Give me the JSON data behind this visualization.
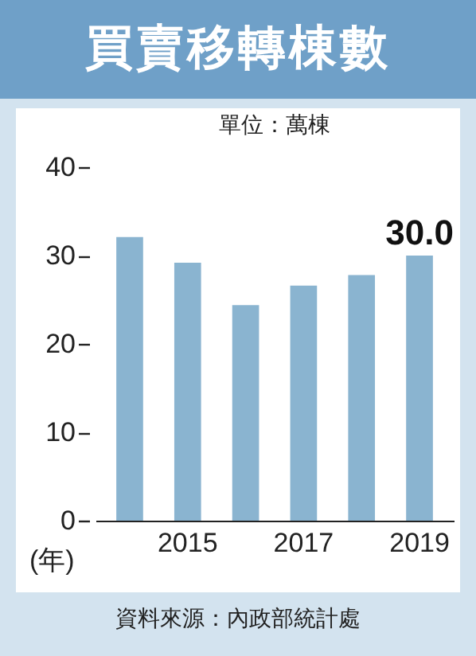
{
  "chart_data": {
    "type": "bar",
    "title": "買賣移轉棟數",
    "subtitle": "單位：萬棟",
    "xlabel": "(年)",
    "annotations": [
      "資料來源：內政部統計處"
    ],
    "categories": [
      null,
      "2015",
      null,
      "2017",
      null,
      "2019"
    ],
    "values": [
      32.1,
      29.2,
      24.4,
      26.6,
      27.8,
      30.0
    ],
    "value_labels": [
      null,
      null,
      null,
      null,
      null,
      "30.0"
    ],
    "color": "#8ab4d0",
    "ylim": [
      0,
      40
    ],
    "yticks": [
      0,
      10,
      20,
      30,
      40
    ],
    "grid": false
  }
}
